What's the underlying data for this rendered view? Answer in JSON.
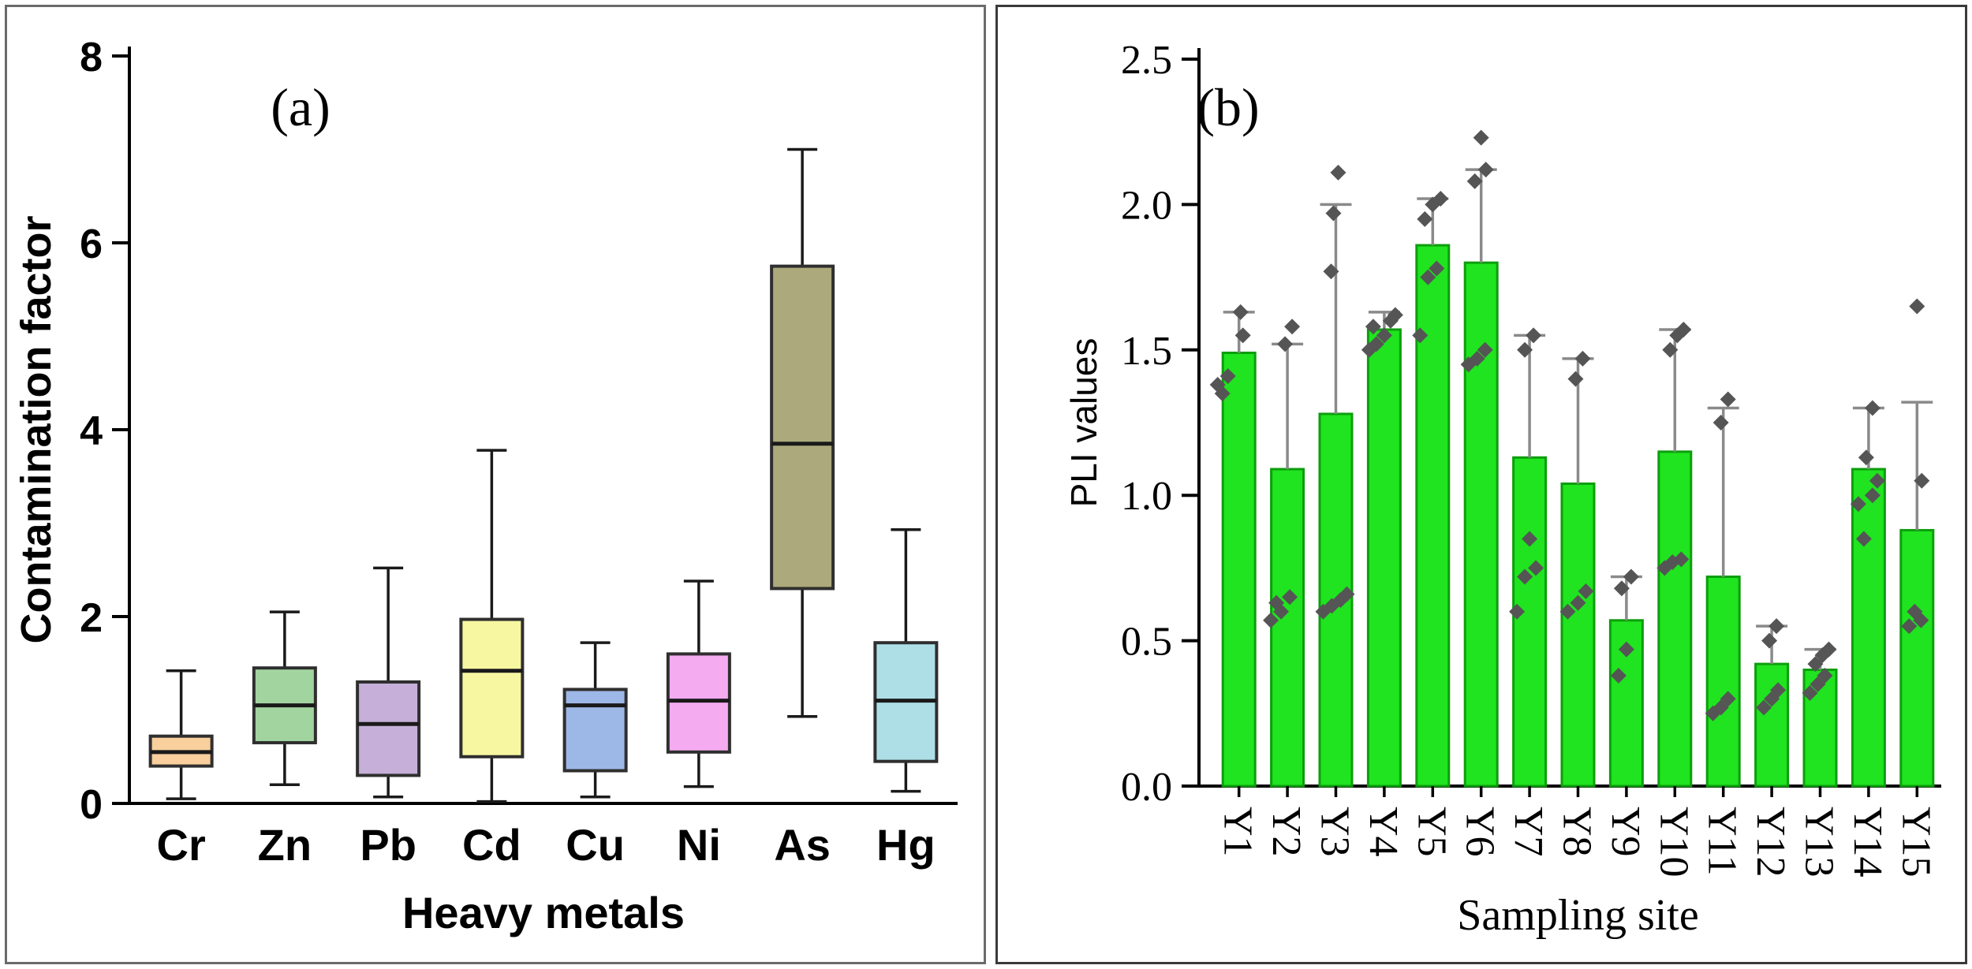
{
  "figure": {
    "background_color": "#ffffff",
    "panel_a_border_color": "#6b6b6b",
    "panel_b_border_color": "#3a3a3a"
  },
  "chart_data": [
    {
      "type": "boxplot",
      "panel_label": "(a)",
      "xlabel": "Heavy metals",
      "ylabel": "Contamination factor",
      "ylim": [
        0,
        8
      ],
      "yticks": [
        0,
        2,
        4,
        6,
        8
      ],
      "ytick_labels": [
        "0",
        "2",
        "4",
        "6",
        "8"
      ],
      "categories": [
        "Cr",
        "Zn",
        "Pb",
        "Cd",
        "Cu",
        "Ni",
        "As",
        "Hg"
      ],
      "box_colors": [
        "#f9cf9d",
        "#a2d4a0",
        "#c6b0d9",
        "#f7f7a2",
        "#9db8e6",
        "#f5abef",
        "#aca97c",
        "#aedfe7"
      ],
      "box_edge_color": "#2f2f2f",
      "whisker_color": "#1a1a1a",
      "boxes": [
        {
          "category": "Cr",
          "whisker_low": 0.05,
          "q1": 0.4,
          "median": 0.55,
          "q3": 0.72,
          "whisker_high": 1.42
        },
        {
          "category": "Zn",
          "whisker_low": 0.2,
          "q1": 0.65,
          "median": 1.05,
          "q3": 1.45,
          "whisker_high": 2.05
        },
        {
          "category": "Pb",
          "whisker_low": 0.07,
          "q1": 0.3,
          "median": 0.85,
          "q3": 1.3,
          "whisker_high": 2.52
        },
        {
          "category": "Cd",
          "whisker_low": 0.02,
          "q1": 0.5,
          "median": 1.42,
          "q3": 1.97,
          "whisker_high": 3.78
        },
        {
          "category": "Cu",
          "whisker_low": 0.07,
          "q1": 0.35,
          "median": 1.05,
          "q3": 1.22,
          "whisker_high": 1.72
        },
        {
          "category": "Ni",
          "whisker_low": 0.18,
          "q1": 0.55,
          "median": 1.1,
          "q3": 1.6,
          "whisker_high": 2.38
        },
        {
          "category": "As",
          "whisker_low": 0.93,
          "q1": 2.3,
          "median": 3.85,
          "q3": 5.75,
          "whisker_high": 7.0
        },
        {
          "category": "Hg",
          "whisker_low": 0.13,
          "q1": 0.45,
          "median": 1.1,
          "q3": 1.72,
          "whisker_high": 2.93
        }
      ]
    },
    {
      "type": "bar",
      "panel_label": "(b)",
      "xlabel": "Sampling site",
      "ylabel": "PLI values",
      "ylim": [
        0,
        2.5
      ],
      "yticks": [
        0,
        0.5,
        1,
        1.5,
        2,
        2.5
      ],
      "ytick_labels": [
        "0.0",
        "0.5",
        "1.0",
        "1.5",
        "2.0",
        "2.5"
      ],
      "bar_color": "#1fe41f",
      "bar_edge_color": "#0d9e0d",
      "error_bar_color": "#8a8a8a",
      "point_color": "#555555",
      "categories": [
        "Y1",
        "Y2",
        "Y3",
        "Y4",
        "Y5",
        "Y6",
        "Y7",
        "Y8",
        "Y9",
        "Y10",
        "Y11",
        "Y12",
        "Y13",
        "Y14",
        "Y15"
      ],
      "values": [
        1.49,
        1.09,
        1.28,
        1.57,
        1.86,
        1.8,
        1.13,
        1.04,
        0.57,
        1.15,
        0.72,
        0.42,
        0.4,
        1.09,
        0.88
      ],
      "error_high": [
        1.63,
        1.52,
        2.0,
        1.63,
        2.02,
        2.12,
        1.55,
        1.47,
        0.72,
        1.57,
        1.3,
        0.55,
        0.47,
        1.3,
        1.32
      ],
      "points": [
        [
          [
            -21,
            1.35
          ],
          [
            -27,
            1.38
          ],
          [
            -14,
            1.41
          ],
          [
            5,
            1.55
          ],
          [
            2,
            1.63
          ]
        ],
        [
          [
            -21,
            0.57
          ],
          [
            -8,
            0.6
          ],
          [
            -14,
            0.63
          ],
          [
            3,
            0.65
          ],
          [
            -3,
            1.52
          ],
          [
            6,
            1.58
          ]
        ],
        [
          [
            -16,
            0.6
          ],
          [
            -5,
            0.62
          ],
          [
            6,
            0.64
          ],
          [
            14,
            0.66
          ],
          [
            -6,
            1.77
          ],
          [
            -3,
            1.97
          ],
          [
            3,
            2.11
          ]
        ],
        [
          [
            -19,
            1.5
          ],
          [
            -10,
            1.52
          ],
          [
            0,
            1.55
          ],
          [
            -14,
            1.58
          ],
          [
            8,
            1.6
          ],
          [
            14,
            1.62
          ]
        ],
        [
          [
            -16,
            1.55
          ],
          [
            -6,
            1.75
          ],
          [
            5,
            1.78
          ],
          [
            -10,
            1.95
          ],
          [
            0,
            2.0
          ],
          [
            10,
            2.02
          ]
        ],
        [
          [
            -16,
            1.45
          ],
          [
            -5,
            1.47
          ],
          [
            5,
            1.5
          ],
          [
            -8,
            2.08
          ],
          [
            6,
            2.12
          ],
          [
            0,
            2.23
          ]
        ],
        [
          [
            -16,
            0.6
          ],
          [
            -6,
            0.72
          ],
          [
            8,
            0.75
          ],
          [
            0,
            0.85
          ],
          [
            -6,
            1.5
          ],
          [
            5,
            1.55
          ]
        ],
        [
          [
            -13,
            0.6
          ],
          [
            0,
            0.63
          ],
          [
            10,
            0.67
          ],
          [
            -3,
            1.4
          ],
          [
            6,
            1.47
          ]
        ],
        [
          [
            -10,
            0.38
          ],
          [
            0,
            0.47
          ],
          [
            -6,
            0.68
          ],
          [
            6,
            0.72
          ]
        ],
        [
          [
            -13,
            0.75
          ],
          [
            -3,
            0.77
          ],
          [
            8,
            0.78
          ],
          [
            -6,
            1.5
          ],
          [
            3,
            1.55
          ],
          [
            11,
            1.57
          ]
        ],
        [
          [
            -13,
            0.25
          ],
          [
            -3,
            0.27
          ],
          [
            6,
            0.3
          ],
          [
            -3,
            1.25
          ],
          [
            6,
            1.33
          ]
        ],
        [
          [
            -10,
            0.27
          ],
          [
            0,
            0.3
          ],
          [
            8,
            0.33
          ],
          [
            -3,
            0.5
          ],
          [
            6,
            0.55
          ]
        ],
        [
          [
            -13,
            0.32
          ],
          [
            -3,
            0.35
          ],
          [
            6,
            0.38
          ],
          [
            -6,
            0.42
          ],
          [
            3,
            0.45
          ],
          [
            11,
            0.47
          ]
        ],
        [
          [
            -6,
            0.85
          ],
          [
            -13,
            0.97
          ],
          [
            5,
            1.0
          ],
          [
            11,
            1.05
          ],
          [
            -3,
            1.13
          ],
          [
            5,
            1.3
          ]
        ],
        [
          [
            -10,
            0.55
          ],
          [
            5,
            0.57
          ],
          [
            -3,
            0.6
          ],
          [
            6,
            1.05
          ],
          [
            0,
            1.65
          ]
        ]
      ]
    }
  ]
}
